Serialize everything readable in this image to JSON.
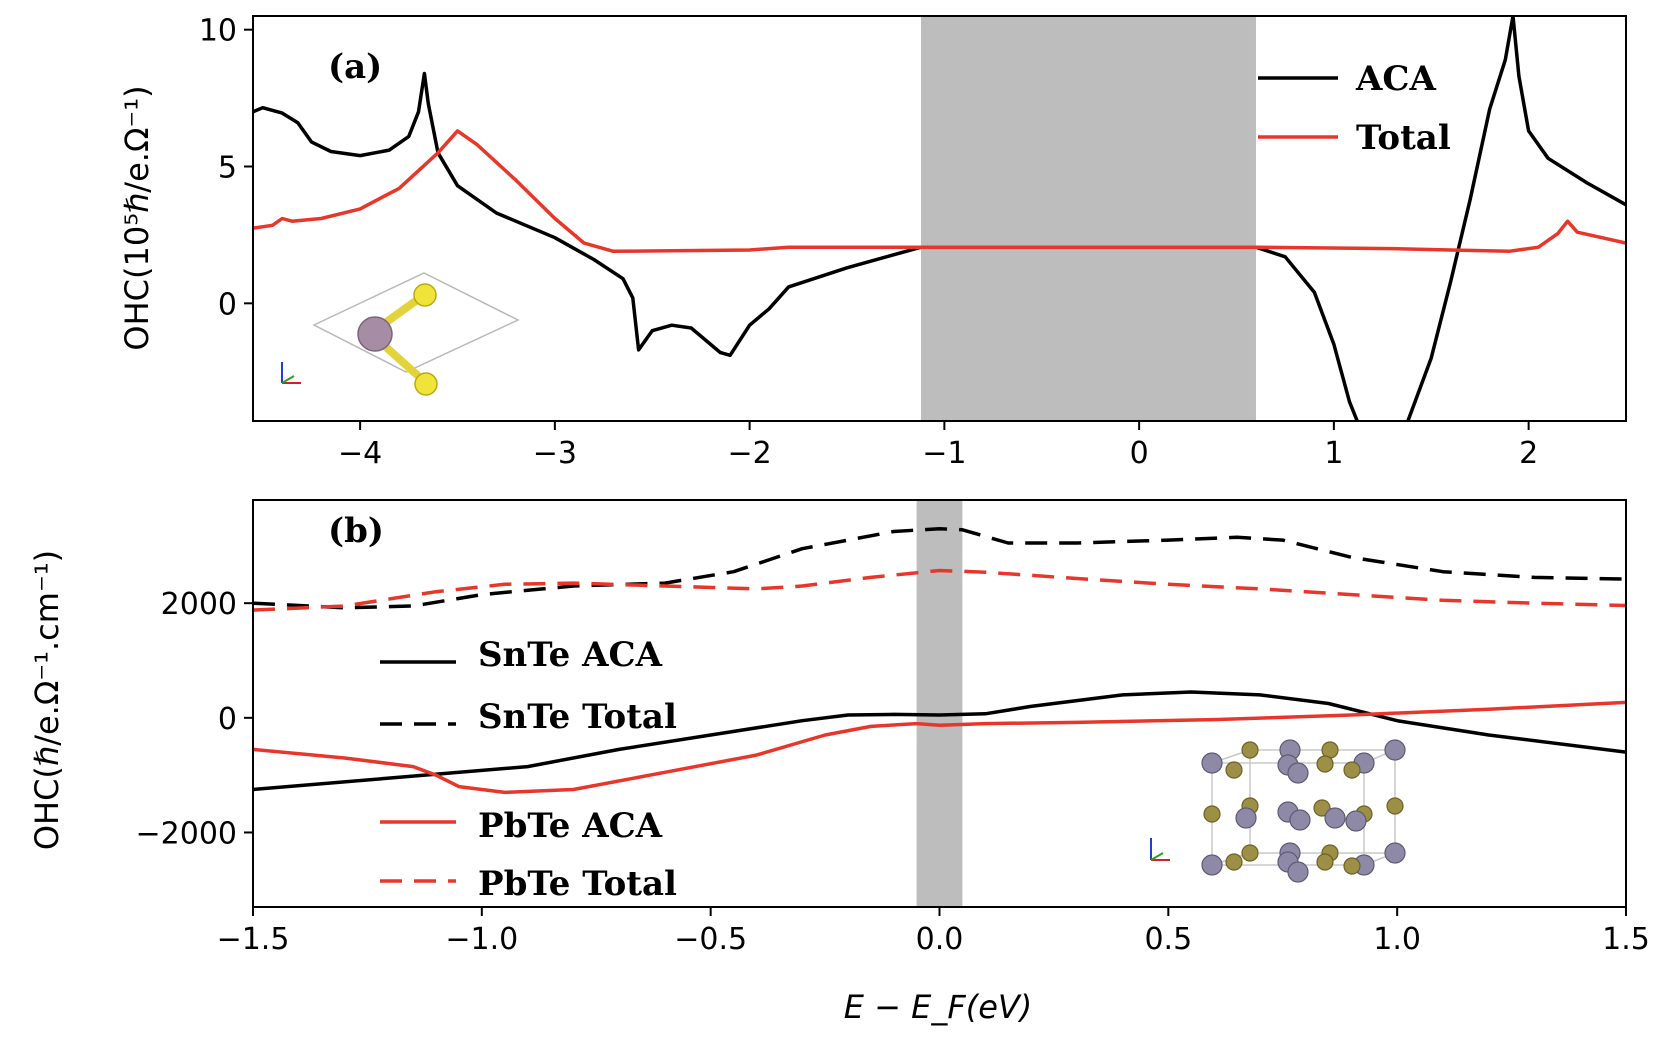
{
  "colors": {
    "aca": "#000000",
    "total": "#e8372a",
    "band": "#bdbdbd"
  },
  "chart_data": [
    {
      "panel_label": "(a)",
      "type": "line",
      "xlabel": "",
      "ylabel": "OHC(10⁵ℏ/e.Ω⁻¹)",
      "xlim": [
        -4.55,
        2.5
      ],
      "ylim": [
        -4.3,
        10.5
      ],
      "xticks": [
        -4,
        -3,
        -2,
        -1,
        0,
        1,
        2
      ],
      "xtick_labels": [
        "−4",
        "−3",
        "−2",
        "−1",
        "0",
        "1",
        "2"
      ],
      "yticks": [
        0,
        5,
        10
      ],
      "ytick_labels": [
        "0",
        "5",
        "10"
      ],
      "shaded_band": [
        -1.12,
        0.6
      ],
      "legend": [
        "ACA",
        "Total"
      ],
      "legend_position": "top-right",
      "series": [
        {
          "name": "ACA",
          "style": "solid",
          "color": "#000000",
          "points": [
            [
              -4.55,
              7.0
            ],
            [
              -4.5,
              7.15
            ],
            [
              -4.4,
              6.95
            ],
            [
              -4.32,
              6.6
            ],
            [
              -4.25,
              5.9
            ],
            [
              -4.15,
              5.55
            ],
            [
              -4.0,
              5.4
            ],
            [
              -3.85,
              5.6
            ],
            [
              -3.75,
              6.1
            ],
            [
              -3.7,
              7.0
            ],
            [
              -3.67,
              8.4
            ],
            [
              -3.65,
              7.3
            ],
            [
              -3.6,
              5.5
            ],
            [
              -3.5,
              4.3
            ],
            [
              -3.3,
              3.3
            ],
            [
              -3.0,
              2.4
            ],
            [
              -2.8,
              1.6
            ],
            [
              -2.65,
              0.9
            ],
            [
              -2.6,
              0.2
            ],
            [
              -2.57,
              -1.7
            ],
            [
              -2.5,
              -1.0
            ],
            [
              -2.4,
              -0.8
            ],
            [
              -2.3,
              -0.9
            ],
            [
              -2.15,
              -1.8
            ],
            [
              -2.1,
              -1.9
            ],
            [
              -2.0,
              -0.8
            ],
            [
              -1.9,
              -0.2
            ],
            [
              -1.8,
              0.6
            ],
            [
              -1.5,
              1.3
            ],
            [
              -1.12,
              2.05
            ],
            [
              0.6,
              2.05
            ],
            [
              0.75,
              1.7
            ],
            [
              0.9,
              0.4
            ],
            [
              1.0,
              -1.5
            ],
            [
              1.08,
              -3.6
            ],
            [
              1.12,
              -4.3
            ]
          ]
        },
        {
          "name": "ACA (right branch)",
          "style": "solid",
          "color": "#000000",
          "points": [
            [
              1.38,
              -4.3
            ],
            [
              1.5,
              -2.0
            ],
            [
              1.6,
              0.8
            ],
            [
              1.7,
              3.8
            ],
            [
              1.8,
              7.1
            ],
            [
              1.88,
              8.9
            ],
            [
              1.92,
              10.5
            ],
            [
              1.95,
              8.3
            ],
            [
              2.0,
              6.3
            ],
            [
              2.1,
              5.3
            ],
            [
              2.3,
              4.4
            ],
            [
              2.5,
              3.6
            ]
          ]
        },
        {
          "name": "Total",
          "style": "solid",
          "color": "#e8372a",
          "points": [
            [
              -4.55,
              2.75
            ],
            [
              -4.45,
              2.85
            ],
            [
              -4.4,
              3.1
            ],
            [
              -4.35,
              3.0
            ],
            [
              -4.2,
              3.1
            ],
            [
              -4.0,
              3.45
            ],
            [
              -3.8,
              4.2
            ],
            [
              -3.6,
              5.5
            ],
            [
              -3.5,
              6.3
            ],
            [
              -3.4,
              5.8
            ],
            [
              -3.2,
              4.5
            ],
            [
              -3.0,
              3.1
            ],
            [
              -2.85,
              2.2
            ],
            [
              -2.7,
              1.9
            ],
            [
              -2.0,
              1.95
            ],
            [
              -1.8,
              2.05
            ],
            [
              0.6,
              2.05
            ],
            [
              1.3,
              2.0
            ],
            [
              1.6,
              1.95
            ],
            [
              1.9,
              1.9
            ],
            [
              2.05,
              2.05
            ],
            [
              2.15,
              2.55
            ],
            [
              2.2,
              3.0
            ],
            [
              2.25,
              2.6
            ],
            [
              2.5,
              2.2
            ]
          ]
        }
      ],
      "inset": {
        "structure": "SnTe monolayer (Sn purple, Te yellow)",
        "position": "bottom-left"
      }
    },
    {
      "panel_label": "(b)",
      "type": "line",
      "xlabel": "E − E_F(eV)",
      "ylabel": "OHC(ℏ/e.Ω⁻¹.cm⁻¹)",
      "xlim": [
        -1.5,
        1.5
      ],
      "ylim": [
        -3300,
        3800
      ],
      "xticks": [
        -1.5,
        -1.0,
        -0.5,
        0.0,
        0.5,
        1.0,
        1.5
      ],
      "xtick_labels": [
        "−1.5",
        "−1.0",
        "−0.5",
        "0.0",
        "0.5",
        "1.0",
        "1.5"
      ],
      "yticks": [
        -2000,
        0,
        2000
      ],
      "ytick_labels": [
        "−2000",
        "0",
        "2000"
      ],
      "shaded_band": [
        -0.05,
        0.05
      ],
      "legend": [
        "SnTe ACA",
        "SnTe Total",
        "PbTe ACA",
        "PbTe Total"
      ],
      "legend_position": "left",
      "series": [
        {
          "name": "SnTe ACA",
          "style": "solid",
          "color": "#000000",
          "points": [
            [
              -1.5,
              -1250
            ],
            [
              -1.2,
              -1050
            ],
            [
              -0.9,
              -850
            ],
            [
              -0.7,
              -550
            ],
            [
              -0.5,
              -300
            ],
            [
              -0.3,
              -50
            ],
            [
              -0.2,
              50
            ],
            [
              -0.1,
              60
            ],
            [
              0.0,
              50
            ],
            [
              0.1,
              70
            ],
            [
              0.2,
              200
            ],
            [
              0.4,
              400
            ],
            [
              0.55,
              450
            ],
            [
              0.7,
              400
            ],
            [
              0.85,
              250
            ],
            [
              1.0,
              -50
            ],
            [
              1.2,
              -300
            ],
            [
              1.5,
              -600
            ]
          ]
        },
        {
          "name": "SnTe Total",
          "style": "dashed",
          "color": "#000000",
          "points": [
            [
              -1.5,
              2000
            ],
            [
              -1.3,
              1920
            ],
            [
              -1.15,
              1950
            ],
            [
              -1.0,
              2150
            ],
            [
              -0.8,
              2300
            ],
            [
              -0.6,
              2350
            ],
            [
              -0.45,
              2550
            ],
            [
              -0.3,
              2950
            ],
            [
              -0.2,
              3100
            ],
            [
              -0.1,
              3250
            ],
            [
              0.0,
              3300
            ],
            [
              0.05,
              3280
            ],
            [
              0.15,
              3050
            ],
            [
              0.3,
              3050
            ],
            [
              0.5,
              3100
            ],
            [
              0.65,
              3150
            ],
            [
              0.75,
              3100
            ],
            [
              0.9,
              2800
            ],
            [
              1.1,
              2550
            ],
            [
              1.3,
              2450
            ],
            [
              1.5,
              2420
            ]
          ]
        },
        {
          "name": "PbTe ACA",
          "style": "solid",
          "color": "#e8372a",
          "points": [
            [
              -1.5,
              -550
            ],
            [
              -1.3,
              -700
            ],
            [
              -1.15,
              -850
            ],
            [
              -1.1,
              -1000
            ],
            [
              -1.05,
              -1200
            ],
            [
              -0.95,
              -1300
            ],
            [
              -0.8,
              -1250
            ],
            [
              -0.6,
              -950
            ],
            [
              -0.4,
              -650
            ],
            [
              -0.25,
              -300
            ],
            [
              -0.15,
              -150
            ],
            [
              -0.05,
              -100
            ],
            [
              0.0,
              -130
            ],
            [
              0.1,
              -100
            ],
            [
              0.3,
              -80
            ],
            [
              0.6,
              -30
            ],
            [
              0.9,
              50
            ],
            [
              1.2,
              150
            ],
            [
              1.5,
              270
            ]
          ]
        },
        {
          "name": "PbTe Total",
          "style": "dashed",
          "color": "#e8372a",
          "points": [
            [
              -1.5,
              1880
            ],
            [
              -1.3,
              1950
            ],
            [
              -1.1,
              2200
            ],
            [
              -0.95,
              2330
            ],
            [
              -0.8,
              2350
            ],
            [
              -0.6,
              2300
            ],
            [
              -0.4,
              2250
            ],
            [
              -0.3,
              2300
            ],
            [
              -0.15,
              2450
            ],
            [
              0.0,
              2570
            ],
            [
              0.1,
              2540
            ],
            [
              0.3,
              2430
            ],
            [
              0.5,
              2330
            ],
            [
              0.7,
              2250
            ],
            [
              0.9,
              2150
            ],
            [
              1.1,
              2050
            ],
            [
              1.3,
              2000
            ],
            [
              1.5,
              1960
            ]
          ]
        }
      ],
      "inset": {
        "structure": "rock-salt cubic cell (purple and olive atoms)",
        "position": "bottom-right"
      }
    }
  ]
}
